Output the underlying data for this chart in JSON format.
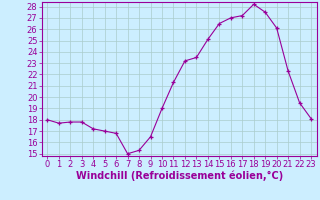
{
  "x_points": [
    0,
    1,
    2,
    3,
    4,
    5,
    6,
    7,
    8,
    9,
    10,
    11,
    12,
    13,
    14,
    15,
    16,
    17,
    18,
    19,
    20,
    21,
    22,
    23
  ],
  "y_points": [
    18.0,
    17.7,
    17.8,
    17.8,
    17.2,
    17.0,
    16.8,
    15.0,
    15.3,
    16.5,
    19.0,
    21.3,
    23.2,
    23.5,
    25.1,
    26.5,
    27.0,
    27.2,
    28.2,
    27.5,
    26.1,
    22.3,
    19.5,
    18.1
  ],
  "line_color": "#990099",
  "marker": "+",
  "xlabel": "Windchill (Refroidissement éolien,°C)",
  "xlim_min": -0.5,
  "xlim_max": 23.5,
  "ylim_min": 14.8,
  "ylim_max": 28.4,
  "yticks": [
    15,
    16,
    17,
    18,
    19,
    20,
    21,
    22,
    23,
    24,
    25,
    26,
    27,
    28
  ],
  "xticks": [
    0,
    1,
    2,
    3,
    4,
    5,
    6,
    7,
    8,
    9,
    10,
    11,
    12,
    13,
    14,
    15,
    16,
    17,
    18,
    19,
    20,
    21,
    22,
    23
  ],
  "bg_color": "#cceeff",
  "grid_color": "#aacccc",
  "line_axis_color": "#990099",
  "tick_color": "#990099",
  "xlabel_color": "#990099",
  "xlabel_fontsize": 7.0,
  "tick_fontsize": 6.0
}
